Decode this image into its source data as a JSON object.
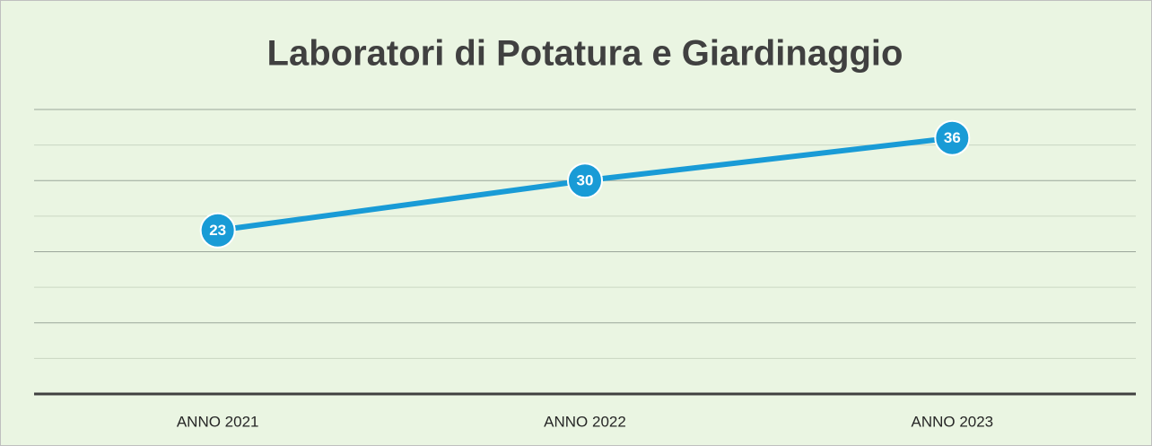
{
  "chart_data": {
    "type": "line",
    "title": "Laboratori di Potatura e Giardinaggio",
    "categories": [
      "ANNO 2021",
      "ANNO 2022",
      "ANNO 2023"
    ],
    "values": [
      23,
      30,
      36
    ],
    "color": "#199bd6",
    "ylim": [
      0,
      40
    ],
    "yticks": [
      0,
      5,
      10,
      15,
      20,
      25,
      30,
      35,
      40
    ],
    "grid": true
  }
}
